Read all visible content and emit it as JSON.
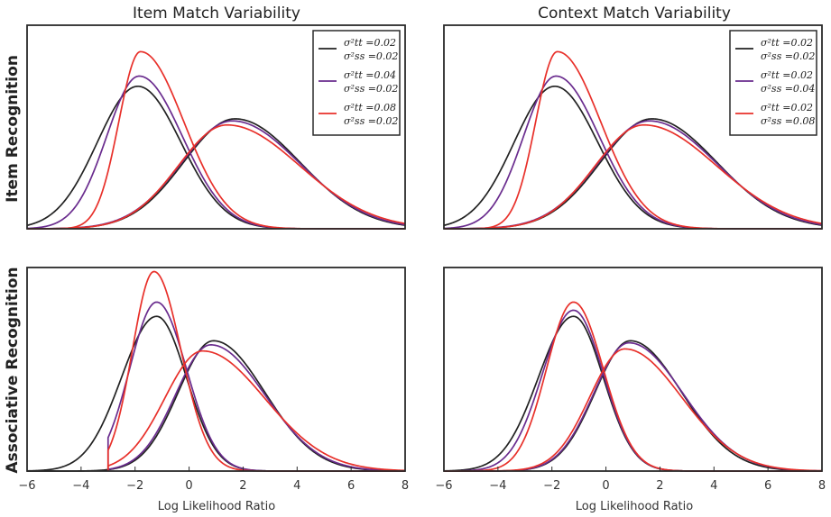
{
  "figure": {
    "col_titles": [
      "Item Match Variability",
      "Context Match Variability"
    ],
    "row_labels": [
      "Item Recognition",
      "Associative Recognition"
    ],
    "xlabel": "Log Likelihood Ratio"
  },
  "colors": [
    "#222222",
    "#6a2c8e",
    "#e8302a"
  ],
  "chart_data": [
    {
      "type": "line",
      "panel": "Item Recognition / Item Match Variability",
      "xlim": [
        -6,
        8
      ],
      "x_ticks": [
        "-6",
        "-4",
        "-2",
        "0",
        "2",
        "4",
        "6",
        "8"
      ],
      "show_x_ticks": false,
      "legend_position": "top-right",
      "legend": [
        {
          "l1": "σ²tt =0.02",
          "l2": "σ²ss =0.02"
        },
        {
          "l1": "σ²tt =0.04",
          "l2": "σ²ss =0.02"
        },
        {
          "l1": "σ²tt =0.08",
          "l2": "σ²ss =0.02"
        }
      ],
      "series": [
        {
          "lure": {
            "mode": -1.9,
            "left_sd": 1.5,
            "right_sd": 1.6,
            "peak": 0.7,
            "floor": -99
          },
          "target": {
            "mode": 1.7,
            "left_sd": 1.9,
            "right_sd": 2.4,
            "peak": 0.54,
            "floor": -99
          }
        },
        {
          "lure": {
            "mode": -1.85,
            "left_sd": 1.2,
            "right_sd": 1.6,
            "peak": 0.75,
            "floor": -99
          },
          "target": {
            "mode": 1.6,
            "left_sd": 1.9,
            "right_sd": 2.5,
            "peak": 0.53,
            "floor": -99
          }
        },
        {
          "lure": {
            "mode": -1.8,
            "left_sd": 0.8,
            "right_sd": 1.6,
            "peak": 0.87,
            "floor": -99
          },
          "target": {
            "mode": 1.4,
            "left_sd": 1.8,
            "right_sd": 2.7,
            "peak": 0.51,
            "floor": -99
          }
        }
      ]
    },
    {
      "type": "line",
      "panel": "Item Recognition / Context Match Variability",
      "xlim": [
        -6,
        8
      ],
      "x_ticks": [
        "-6",
        "-4",
        "-2",
        "0",
        "2",
        "4",
        "6",
        "8"
      ],
      "show_x_ticks": false,
      "legend_position": "top-right",
      "legend": [
        {
          "l1": "σ²tt =0.02",
          "l2": "σ²ss =0.02"
        },
        {
          "l1": "σ²tt =0.02",
          "l2": "σ²ss =0.04"
        },
        {
          "l1": "σ²tt =0.02",
          "l2": "σ²ss =0.08"
        }
      ],
      "series": [
        {
          "lure": {
            "mode": -1.9,
            "left_sd": 1.5,
            "right_sd": 1.6,
            "peak": 0.7,
            "floor": -99
          },
          "target": {
            "mode": 1.7,
            "left_sd": 1.9,
            "right_sd": 2.4,
            "peak": 0.54,
            "floor": -99
          }
        },
        {
          "lure": {
            "mode": -1.85,
            "left_sd": 1.2,
            "right_sd": 1.6,
            "peak": 0.75,
            "floor": -99
          },
          "target": {
            "mode": 1.6,
            "left_sd": 1.9,
            "right_sd": 2.5,
            "peak": 0.53,
            "floor": -99
          }
        },
        {
          "lure": {
            "mode": -1.8,
            "left_sd": 0.8,
            "right_sd": 1.6,
            "peak": 0.87,
            "floor": -99
          },
          "target": {
            "mode": 1.4,
            "left_sd": 1.8,
            "right_sd": 2.7,
            "peak": 0.51,
            "floor": -99
          }
        }
      ]
    },
    {
      "type": "line",
      "panel": "Associative Recognition / Item Match Variability",
      "xlim": [
        -6,
        8
      ],
      "x_ticks": [
        "-6",
        "-4",
        "-2",
        "0",
        "2",
        "4",
        "6",
        "8"
      ],
      "show_x_ticks": true,
      "legend_position": "none",
      "legend": [],
      "series": [
        {
          "lure": {
            "mode": -1.2,
            "left_sd": 1.3,
            "right_sd": 1.1,
            "peak": 0.76,
            "floor": -99
          },
          "target": {
            "mode": 0.9,
            "left_sd": 1.3,
            "right_sd": 1.9,
            "peak": 0.64,
            "floor": -99
          }
        },
        {
          "lure": {
            "mode": -1.2,
            "left_sd": 1.0,
            "right_sd": 1.1,
            "peak": 0.83,
            "floor": -3.0
          },
          "target": {
            "mode": 0.8,
            "left_sd": 1.3,
            "right_sd": 2.0,
            "peak": 0.62,
            "floor": -3.0
          }
        },
        {
          "lure": {
            "mode": -1.3,
            "left_sd": 0.8,
            "right_sd": 1.0,
            "peak": 0.98,
            "floor": -3.0
          },
          "target": {
            "mode": 0.5,
            "left_sd": 1.4,
            "right_sd": 2.3,
            "peak": 0.59,
            "floor": -3.0
          }
        }
      ]
    },
    {
      "type": "line",
      "panel": "Associative Recognition / Context Match Variability",
      "xlim": [
        -6,
        8
      ],
      "x_ticks": [
        "-6",
        "-4",
        "-2",
        "0",
        "2",
        "4",
        "6",
        "8"
      ],
      "show_x_ticks": true,
      "legend_position": "none",
      "legend": [],
      "series": [
        {
          "lure": {
            "mode": -1.2,
            "left_sd": 1.3,
            "right_sd": 1.1,
            "peak": 0.76,
            "floor": -99
          },
          "target": {
            "mode": 0.9,
            "left_sd": 1.3,
            "right_sd": 1.9,
            "peak": 0.64,
            "floor": -99
          }
        },
        {
          "lure": {
            "mode": -1.2,
            "left_sd": 1.15,
            "right_sd": 1.1,
            "peak": 0.79,
            "floor": -99
          },
          "target": {
            "mode": 0.85,
            "left_sd": 1.3,
            "right_sd": 2.0,
            "peak": 0.63,
            "floor": -99
          }
        },
        {
          "lure": {
            "mode": -1.2,
            "left_sd": 1.0,
            "right_sd": 1.1,
            "peak": 0.83,
            "floor": -99
          },
          "target": {
            "mode": 0.7,
            "left_sd": 1.3,
            "right_sd": 2.1,
            "peak": 0.6,
            "floor": -99
          }
        }
      ]
    }
  ]
}
